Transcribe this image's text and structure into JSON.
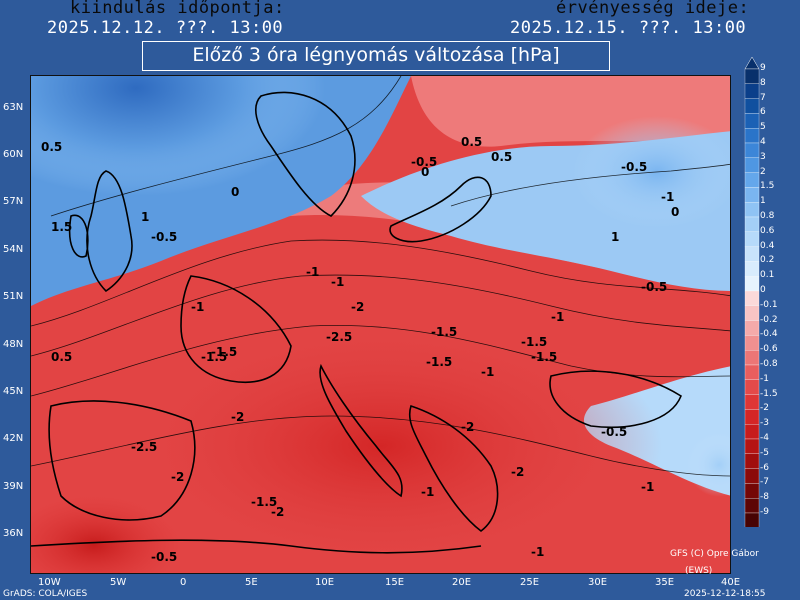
{
  "header": {
    "init_label": "kiindulás időpontja:",
    "init_time": "2025.12.12. ???. 13:00",
    "valid_label": "érvényesség ideje:",
    "valid_time": "2025.12.15. ???. 13:00",
    "title": "Előző 3 óra légnyomás változása [hPa]"
  },
  "axes": {
    "lat_ticks": [
      "63N",
      "60N",
      "57N",
      "54N",
      "51N",
      "48N",
      "45N",
      "42N",
      "39N",
      "36N"
    ],
    "lon_ticks": [
      "10W",
      "5W",
      "0",
      "5E",
      "10E",
      "15E",
      "20E",
      "25E",
      "30E",
      "35E",
      "40E"
    ]
  },
  "legend": {
    "levels": [
      "9",
      "8",
      "7",
      "6",
      "5",
      "4",
      "3",
      "2",
      "1.5",
      "1",
      "0.8",
      "0.6",
      "0.4",
      "0.2",
      "0.1",
      "0",
      "-0.1",
      "-0.2",
      "-0.4",
      "-0.6",
      "-0.8",
      "-1",
      "-1.5",
      "-2",
      "-3",
      "-4",
      "-5",
      "-6",
      "-7",
      "-8",
      "-9"
    ],
    "colors": [
      "#08306b",
      "#0b3f8a",
      "#10509f",
      "#1b61b5",
      "#2a74c9",
      "#3c86d8",
      "#4f97e2",
      "#64a7eb",
      "#7ab5f0",
      "#8fc3f4",
      "#a3cff7",
      "#b6dafa",
      "#c8e3fb",
      "#d8ecfd",
      "#e6f3fe",
      "#fbd9d9",
      "#f8c4c4",
      "#f4aaaa",
      "#f09090",
      "#ec7676",
      "#e85e5e",
      "#e44a4a",
      "#de3636",
      "#d42626",
      "#c71c1c",
      "#b51414",
      "#a10e0e",
      "#8b0a0a",
      "#740707",
      "#5d0505",
      "#470303"
    ]
  },
  "map": {
    "contour_labels": [
      "-0.5",
      "0.5",
      "-1",
      "-1.5",
      "-2",
      "-2.5",
      "0",
      "1",
      "1.5",
      "-0.5",
      "0.5",
      "-1",
      "-1.5",
      "-2",
      "-2.5",
      "0",
      "-0.5",
      "-1",
      "-1.5",
      "-2",
      "-0.5",
      "0.5",
      "1",
      "0",
      "-1",
      "-1.5",
      "-2",
      "-1",
      "-0.5",
      "-0.5",
      "-1",
      "-1.5",
      "-1",
      "0.5",
      "-1.5",
      "-2",
      "-1.5",
      "-2",
      "-1",
      "-1"
    ]
  },
  "footer": {
    "grads": "GrADS: COLA/IGES",
    "timestamp": "2025-12-12-18:55",
    "credit_line1": "GFS (C) Opre Gábor",
    "credit_line2": "(EWS)"
  }
}
